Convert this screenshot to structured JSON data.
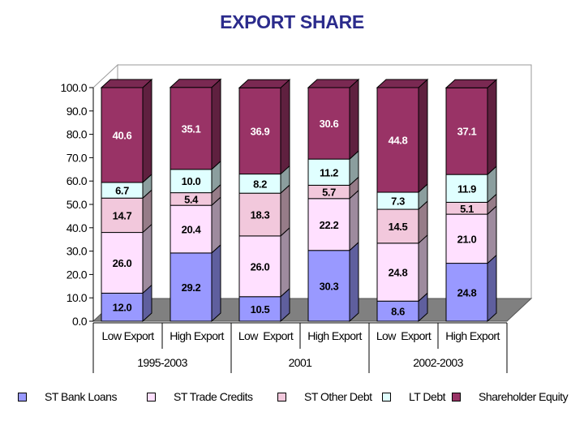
{
  "chart_data": {
    "type": "bar",
    "stacked": true,
    "title": "EXPORT SHARE",
    "xlabel": "",
    "ylabel": "",
    "ylim": [
      0,
      100
    ],
    "yticks": [
      "0.0",
      "10.0",
      "20.0",
      "30.0",
      "40.0",
      "50.0",
      "60.0",
      "70.0",
      "80.0",
      "90.0",
      "100.0"
    ],
    "categories": [
      "Low Export",
      "High Export",
      "Low  Export",
      "High Export",
      "Low  Export",
      "High Export"
    ],
    "groups": [
      {
        "label": "1995-2003",
        "span": 2
      },
      {
        "label": "2001",
        "span": 2
      },
      {
        "label": "2002-2003",
        "span": 2
      }
    ],
    "series": [
      {
        "name": "ST Bank Loans",
        "color": "#9999ff",
        "values": [
          12.0,
          29.2,
          10.5,
          30.3,
          8.6,
          24.8
        ],
        "labels": [
          "12.0",
          "29.2",
          "10.5",
          "30.3",
          "8.6",
          "24.8"
        ]
      },
      {
        "name": "ST Trade Credits",
        "color": "#ffe0ff",
        "values": [
          26.0,
          20.4,
          26.0,
          22.2,
          24.8,
          21.0
        ],
        "labels": [
          "26.0",
          "20.4",
          "26.0",
          "22.2",
          "24.8",
          "21.0"
        ]
      },
      {
        "name": "ST Other Debt",
        "color": "#f2c8dc",
        "values": [
          14.7,
          5.4,
          18.3,
          5.7,
          14.5,
          5.1
        ],
        "labels": [
          "14.7",
          "5.4",
          "18.3",
          "5.7",
          "14.5",
          "5.1"
        ]
      },
      {
        "name": "LT Debt",
        "color": "#e0ffff",
        "values": [
          6.7,
          10.0,
          8.2,
          11.2,
          7.3,
          11.9
        ],
        "labels": [
          "6.7",
          "10.0",
          "8.2",
          "11.2",
          "7.3",
          "11.9"
        ]
      },
      {
        "name": "Shareholder Equity",
        "color": "#993366",
        "values": [
          40.6,
          35.1,
          36.9,
          30.6,
          44.8,
          37.1
        ],
        "labels": [
          "40.6",
          "35.1",
          "36.9",
          "30.6",
          "44.8",
          "37.1"
        ]
      }
    ],
    "label_colors": {
      "dark": "#000000",
      "light": "#ffffff"
    },
    "grid": false,
    "legend_position": "bottom"
  }
}
